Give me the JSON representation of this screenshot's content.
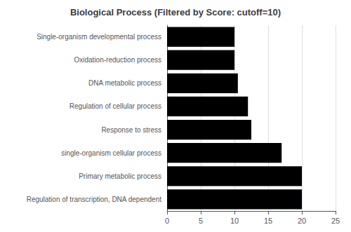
{
  "chart_data": {
    "type": "bar",
    "orientation": "horizontal",
    "title": "Biological Process (Filtered by Score: cutoff=10)",
    "categories": [
      "Regulation of transcription, DNA dependent",
      "Primary metabolic process",
      "single-organism cellular process",
      "Response to stress",
      "Regulation of cellular process",
      "DNA metabolic process",
      "Oxidation-reduction process",
      "Single-organism developmental process"
    ],
    "values": [
      20,
      20,
      17,
      12.5,
      12,
      10.5,
      10,
      10
    ],
    "color": "#000000",
    "xlim": [
      0,
      25
    ],
    "xticks": [
      0,
      5,
      10,
      15,
      20,
      25
    ],
    "grid": true
  }
}
